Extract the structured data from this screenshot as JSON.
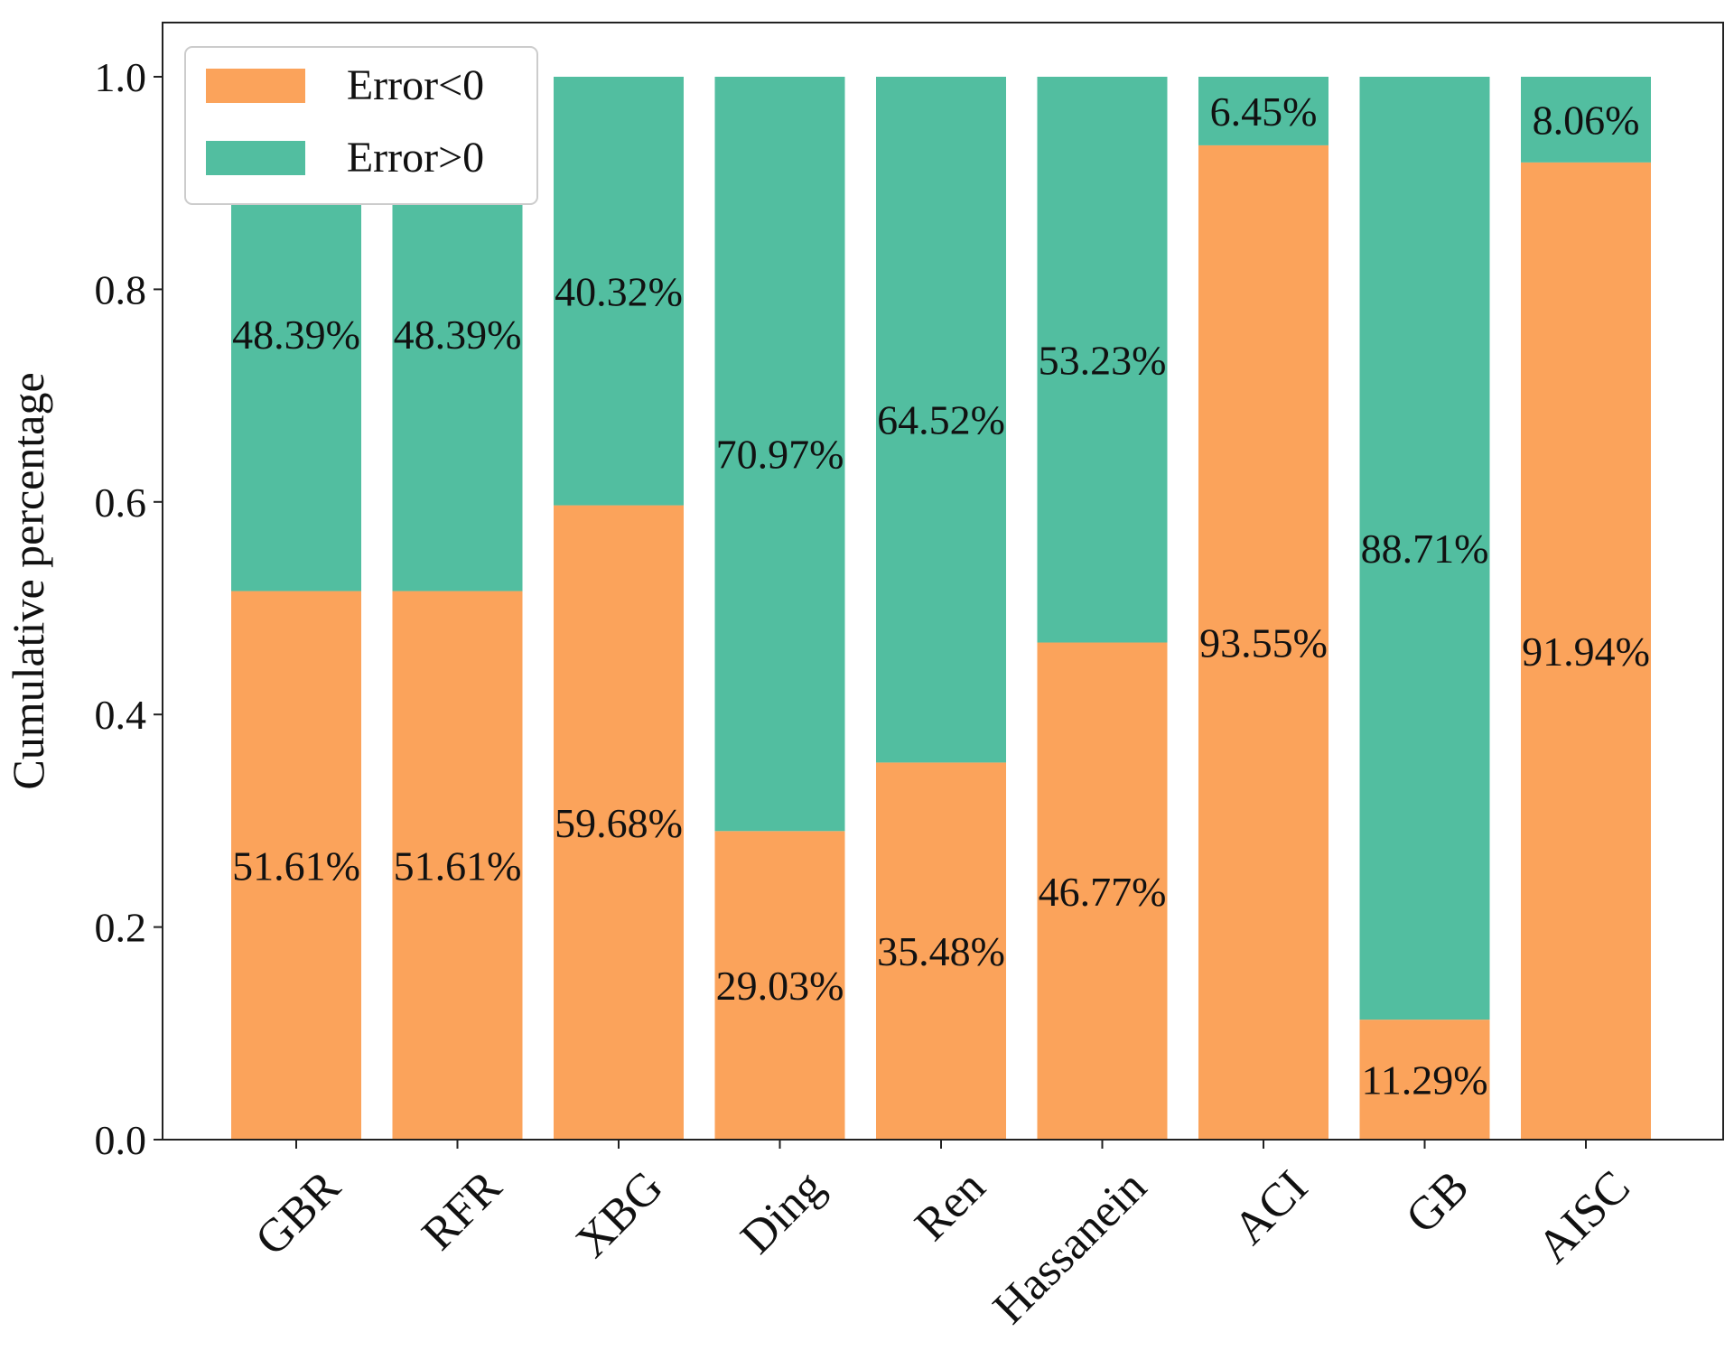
{
  "chart_data": {
    "type": "bar",
    "stacked": true,
    "categories": [
      "GBR",
      "RFR",
      "XBG",
      "Ding",
      "Ren",
      "Hassanein",
      "ACI",
      "GB",
      "AISC"
    ],
    "series": [
      {
        "name": "Error<0",
        "color": "#FBA35B",
        "values": [
          0.5161,
          0.5161,
          0.5968,
          0.2903,
          0.3548,
          0.4677,
          0.9355,
          0.1129,
          0.9194
        ],
        "labels": [
          "51.61%",
          "51.61%",
          "59.68%",
          "29.03%",
          "35.48%",
          "46.77%",
          "93.55%",
          "11.29%",
          "91.94%"
        ]
      },
      {
        "name": "Error>0",
        "color": "#52BEA0",
        "values": [
          0.4839,
          0.4839,
          0.4032,
          0.7097,
          0.6452,
          0.5323,
          0.0645,
          0.8871,
          0.0806
        ],
        "labels": [
          "48.39%",
          "48.39%",
          "40.32%",
          "70.97%",
          "64.52%",
          "53.23%",
          "6.45%",
          "88.71%",
          "8.06%"
        ]
      }
    ],
    "ylabel": "Cumulative percentage",
    "xlabel": "",
    "ylim": [
      0,
      1.0
    ],
    "yticks": [
      "0.0",
      "0.2",
      "0.4",
      "0.6",
      "0.8",
      "1.0"
    ],
    "grid": false,
    "legend_position": "top-left"
  }
}
